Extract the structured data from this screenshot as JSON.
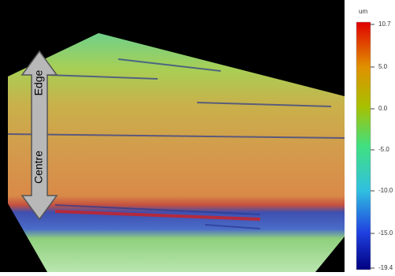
{
  "image": {
    "arrow_labels": {
      "top": "Edge",
      "bottom": "Centre"
    }
  },
  "colorbar": {
    "unit": "um",
    "ticks": [
      "10.7",
      "5.0",
      "0.0",
      "-5.0",
      "-10.0",
      "-15.0",
      "-19.4"
    ]
  }
}
